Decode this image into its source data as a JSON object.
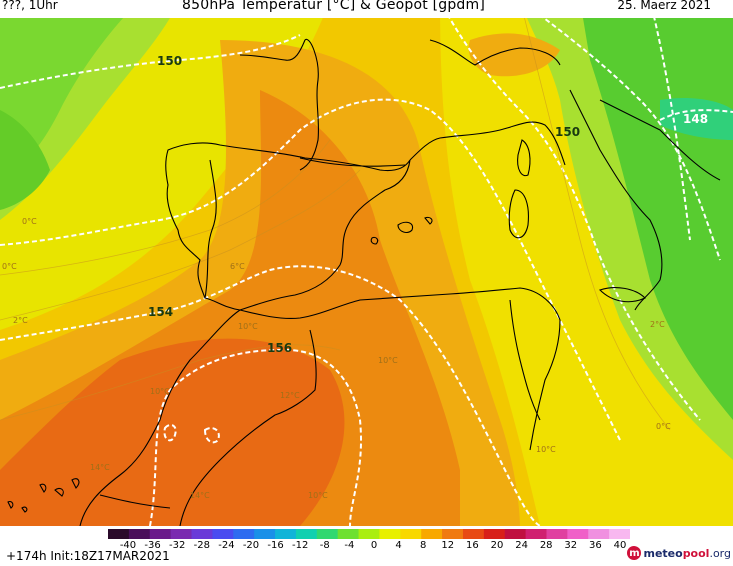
{
  "header": {
    "left": "???, 1Uhr",
    "title": "850hPa Temperatur [°C] & Geopot [gpdm]",
    "date": "25. Maerz 2021"
  },
  "footer": {
    "forecast": "+174h Init:18Z17MAR2021",
    "logo_part1": "meteo",
    "logo_part2": "pool",
    "logo_part3": ".org"
  },
  "colorbar": {
    "ticks": [
      "-40",
      "-36",
      "-32",
      "-28",
      "-24",
      "-20",
      "-16",
      "-12",
      "-8",
      "-4",
      "0",
      "4",
      "8",
      "12",
      "16",
      "20",
      "24",
      "28",
      "32",
      "36",
      "40"
    ],
    "colors": [
      "#2a0a2a",
      "#4a0f5a",
      "#6a1a8a",
      "#7a2ab0",
      "#6a3ad8",
      "#4a4cf0",
      "#2e6cf0",
      "#1a90e8",
      "#10b4d8",
      "#10d0b0",
      "#30d870",
      "#6ee030",
      "#aaee10",
      "#e8f000",
      "#f8d800",
      "#f8a800",
      "#f07a10",
      "#e84a14",
      "#d8201a",
      "#c01040",
      "#d02070",
      "#e040a0",
      "#f060c8",
      "#f090e0",
      "#f8b8f0"
    ]
  },
  "map_labels": {
    "geopot": [
      {
        "text": "150",
        "color": "#1a3a10"
      },
      {
        "text": "150",
        "color": "#1a3a10"
      },
      {
        "text": "148",
        "color": "#ffffff"
      },
      {
        "text": "154",
        "color": "#1a3a10"
      },
      {
        "text": "156",
        "color": "#1a3a10"
      }
    ],
    "temp": [
      "0°C",
      "0°C",
      "2°C",
      "6°C",
      "10°C",
      "10°C",
      "10°C",
      "12°C",
      "14°C",
      "14°C",
      "10°C",
      "10°C",
      "2°C",
      "0°C"
    ]
  }
}
